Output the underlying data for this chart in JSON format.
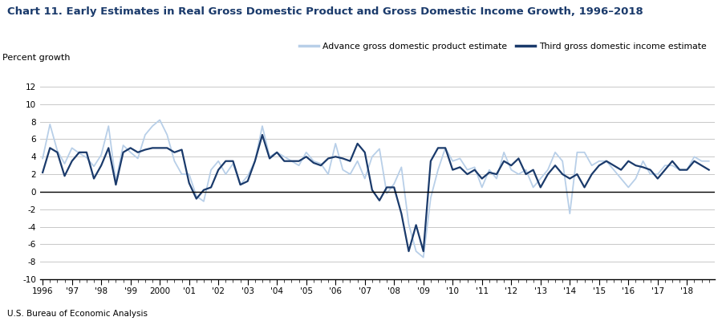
{
  "title": "Chart 11. Early Estimates in Real Gross Domestic Product and Gross Domestic Income Growth, 1996–2018",
  "ylabel": "Percent growth",
  "source": "U.S. Bureau of Economic Analysis",
  "legend_gdp": "Advance gross domestic product estimate",
  "legend_gdi": "Third gross domestic income estimate",
  "gdp_color": "#b8cfe8",
  "gdi_color": "#1a3a6b",
  "title_color": "#1a3a6b",
  "ylim": [
    -10,
    12
  ],
  "yticks": [
    -10,
    -8,
    -6,
    -4,
    -2,
    0,
    2,
    4,
    6,
    8,
    10,
    12
  ],
  "xtick_labels": [
    "1996",
    "'97",
    "'98",
    "'99",
    "2000",
    "'01",
    "'02",
    "'03",
    "'04",
    "'05",
    "'06",
    "'07",
    "'08",
    "'09",
    "'10",
    "'11",
    "'12",
    "'13",
    "'14",
    "'15",
    "'16",
    "'17",
    "'18"
  ],
  "gdp_q": [
    3.8,
    7.7,
    4.7,
    3.2,
    5.0,
    4.4,
    3.9,
    2.9,
    4.2,
    7.5,
    1.1,
    5.3,
    4.5,
    3.8,
    6.5,
    7.5,
    8.2,
    6.5,
    3.5,
    2.0,
    2.0,
    -0.5,
    -1.1,
    2.5,
    3.5,
    2.0,
    3.2,
    0.8,
    1.8,
    3.5,
    7.5,
    4.0,
    4.5,
    4.0,
    3.5,
    3.0,
    4.5,
    3.5,
    3.2,
    2.0,
    5.5,
    2.5,
    2.0,
    3.5,
    1.5,
    4.0,
    4.9,
    -0.2,
    0.9,
    2.8,
    -3.7,
    -6.8,
    -7.5,
    -0.7,
    2.5,
    5.0,
    3.5,
    3.8,
    2.5,
    2.8,
    0.5,
    2.5,
    1.5,
    4.5,
    2.5,
    2.0,
    2.5,
    0.5,
    1.5,
    2.5,
    4.5,
    3.5,
    -2.5,
    4.5,
    4.5,
    3.0,
    3.5,
    3.5,
    2.5,
    1.5,
    0.5,
    1.5,
    3.5,
    2.0,
    2.0,
    3.0,
    3.0,
    2.5,
    2.5,
    4.0,
    3.5,
    3.5
  ],
  "gdi_q": [
    2.2,
    5.0,
    4.5,
    1.8,
    3.5,
    4.5,
    4.5,
    1.5,
    3.0,
    5.0,
    0.8,
    4.5,
    5.0,
    4.5,
    4.8,
    5.0,
    5.0,
    5.0,
    4.5,
    4.8,
    1.0,
    -0.8,
    0.2,
    0.5,
    2.5,
    3.5,
    3.5,
    0.8,
    1.2,
    3.5,
    6.5,
    3.8,
    4.5,
    3.5,
    3.5,
    3.5,
    4.0,
    3.3,
    3.0,
    3.8,
    4.0,
    3.8,
    3.5,
    5.5,
    4.5,
    0.2,
    -1.0,
    0.5,
    0.5,
    -2.5,
    -6.8,
    -3.8,
    -6.8,
    3.5,
    5.0,
    5.0,
    2.5,
    2.8,
    2.0,
    2.5,
    1.5,
    2.2,
    2.0,
    3.5,
    3.0,
    3.8,
    2.0,
    2.5,
    0.5,
    2.0,
    3.0,
    2.0,
    1.5,
    2.0,
    0.5,
    2.0,
    3.0,
    3.5,
    3.0,
    2.5,
    3.5,
    3.0,
    2.8,
    2.5,
    1.5,
    2.5,
    3.5,
    2.5,
    2.5,
    3.5,
    3.0,
    2.5
  ]
}
